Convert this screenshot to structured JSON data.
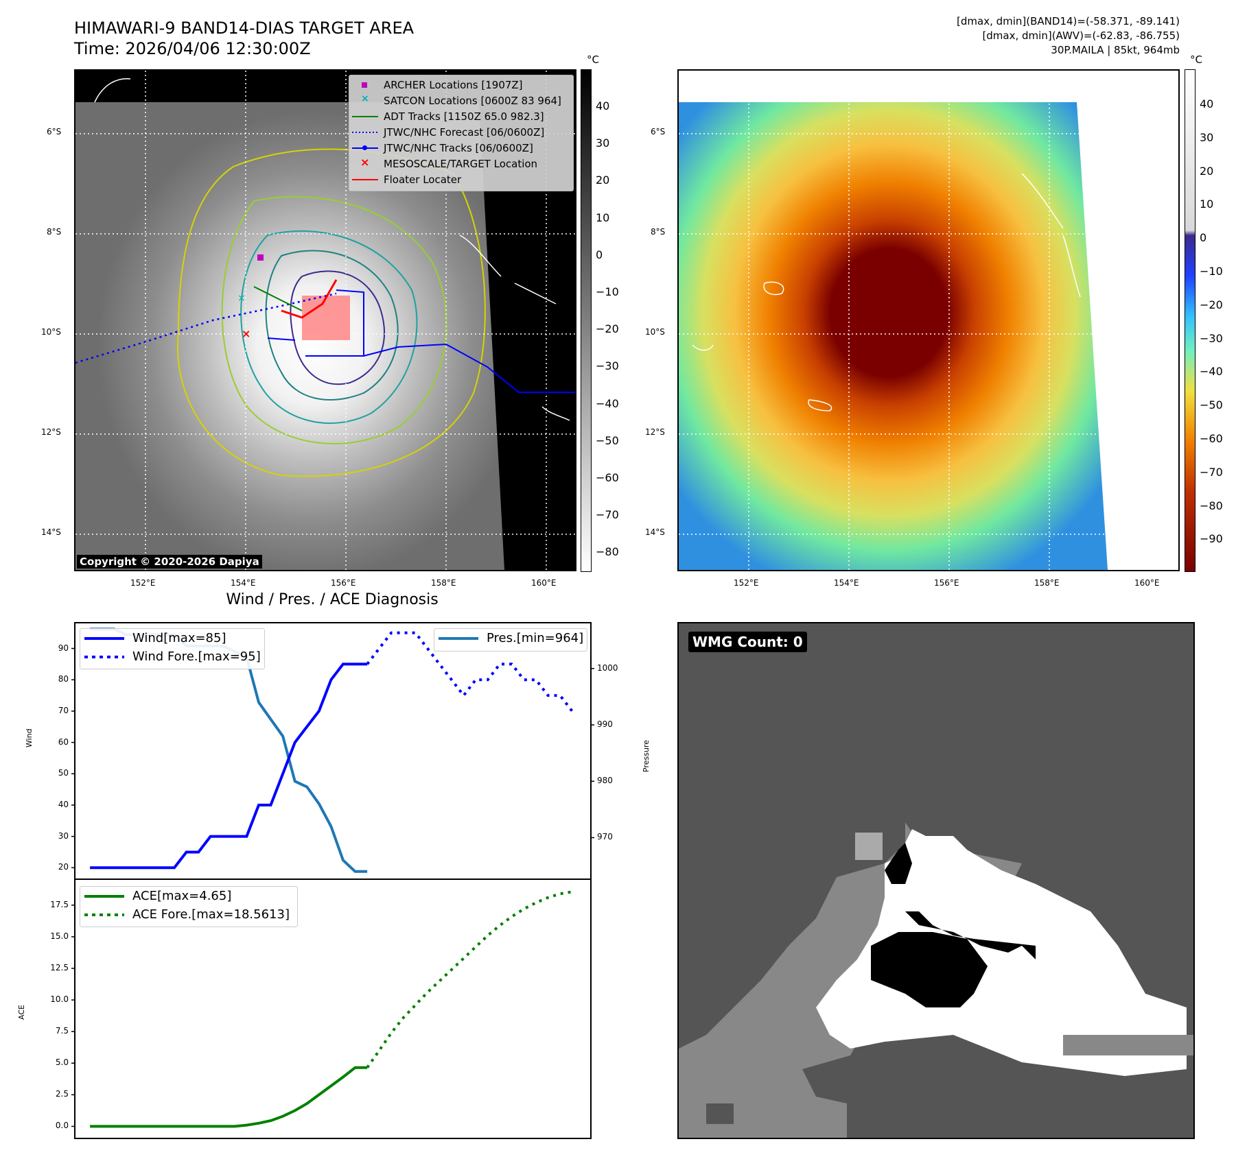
{
  "header": {
    "title_line1": "HIMAWARI-9 BAND14-DIAS TARGET AREA",
    "title_line2": "Time: 2026/04/06 12:30:00Z",
    "info_line1": "[dmax, dmin](BAND14)=(-58.371, -89.141)",
    "info_line2": "[dmax, dmin](AWV)=(-62.83, -86.755)",
    "info_line3": "30P.MAILA | 85kt, 964mb"
  },
  "map": {
    "lat_labels": [
      "6°S",
      "8°S",
      "10°S",
      "12°S",
      "14°S"
    ],
    "lon_labels": [
      "152°E",
      "154°E",
      "156°E",
      "158°E",
      "160°E"
    ],
    "copyright": "Copyright © 2020-2026 Dapiya",
    "legend": [
      {
        "label": "ARCHER Locations [1907Z]",
        "color": "#c000c0",
        "kind": "square"
      },
      {
        "label": "SATCON Locations [0600Z 83 964]",
        "color": "#00b0b0",
        "kind": "cross"
      },
      {
        "label": "ADT Tracks [1150Z 65.0 982.3]",
        "color": "#008000",
        "kind": "line"
      },
      {
        "label": "JTWC/NHC Forecast [06/0600Z]",
        "color": "#0000ff",
        "kind": "dotted"
      },
      {
        "label": "JTWC/NHC Tracks [06/0600Z]",
        "color": "#0000ff",
        "kind": "linedot"
      },
      {
        "label": "MESOSCALE/TARGET Location",
        "color": "#ff0000",
        "kind": "x"
      },
      {
        "label": "Floater Locater",
        "color": "#ff0000",
        "kind": "line"
      }
    ]
  },
  "colorbar_left": {
    "unit": "°C",
    "ticks": [
      "40",
      "30",
      "20",
      "10",
      "0",
      "−10",
      "−20",
      "−30",
      "−40",
      "−50",
      "−60",
      "−70",
      "−80"
    ]
  },
  "colorbar_right": {
    "unit": "°C",
    "ticks": [
      "40",
      "30",
      "20",
      "10",
      "0",
      "−10",
      "−20",
      "−30",
      "−40",
      "−50",
      "−60",
      "−70",
      "−80",
      "−90"
    ]
  },
  "diagnosis": {
    "title": "Wind / Pres. / ACE Diagnosis",
    "wind_ylabel": "Wind",
    "pressure_ylabel": "Pressure",
    "ace_ylabel": "ACE",
    "wind_ticks": [
      "90",
      "80",
      "70",
      "60",
      "50",
      "40",
      "30",
      "20"
    ],
    "pressure_ticks": [
      "1000",
      "990",
      "980",
      "970"
    ],
    "ace_ticks": [
      "17.5",
      "15.0",
      "12.5",
      "10.0",
      "7.5",
      "5.0",
      "2.5",
      "0.0"
    ],
    "legend_wind": "Wind[max=85]",
    "legend_wind_fore": "Wind Fore.[max=95]",
    "legend_pres": "Pres.[min=964]",
    "legend_ace": "ACE[max=4.65]",
    "legend_ace_fore": "ACE Fore.[max=18.5613]"
  },
  "wmg": {
    "label": "WMG Count: 0"
  },
  "chart_data": [
    {
      "type": "line",
      "title": "Wind / Pres. / ACE Diagnosis",
      "ylabel": "Wind",
      "ylim": [
        17,
        98
      ],
      "series": [
        {
          "name": "Wind[max=85]",
          "style": "solid",
          "color": "#0000ff",
          "x": [
            0,
            1,
            2,
            3,
            4,
            5,
            6,
            7,
            8,
            9,
            10,
            11,
            12,
            13,
            14,
            15,
            16,
            17,
            18,
            19,
            20,
            21,
            22,
            23
          ],
          "values": [
            20,
            20,
            20,
            20,
            20,
            20,
            20,
            20,
            25,
            25,
            30,
            30,
            30,
            30,
            40,
            40,
            50,
            60,
            65,
            70,
            80,
            85,
            85,
            85
          ]
        },
        {
          "name": "Wind Fore.[max=95]",
          "style": "dotted",
          "color": "#0000ff",
          "x": [
            23,
            24,
            25,
            26,
            27,
            28,
            29,
            30,
            31,
            32,
            33,
            34,
            35,
            36,
            37,
            38,
            39,
            40
          ],
          "values": [
            85,
            90,
            95,
            95,
            95,
            90,
            85,
            80,
            75,
            80,
            80,
            85,
            85,
            80,
            80,
            75,
            75,
            70
          ]
        }
      ]
    },
    {
      "type": "line",
      "ylabel": "Pressure",
      "ylim": [
        963,
        1008
      ],
      "series": [
        {
          "name": "Pres.[min=964]",
          "style": "solid",
          "color": "#1f77b4",
          "x": [
            0,
            1,
            2,
            3,
            4,
            5,
            6,
            7,
            8,
            9,
            10,
            11,
            12,
            13,
            14,
            15,
            16,
            17,
            18,
            19,
            20,
            21,
            22,
            23
          ],
          "values": [
            1007,
            1007,
            1007,
            1006,
            1006,
            1006,
            1006,
            1006,
            1004,
            1004,
            1004,
            1004,
            1003,
            1002,
            994,
            991,
            988,
            980,
            979,
            976,
            972,
            966,
            964,
            964
          ]
        }
      ]
    },
    {
      "type": "line",
      "ylabel": "ACE",
      "ylim": [
        -0.9,
        19.5
      ],
      "series": [
        {
          "name": "ACE[max=4.65]",
          "style": "solid",
          "color": "#008000",
          "x": [
            0,
            1,
            2,
            3,
            4,
            5,
            6,
            7,
            8,
            9,
            10,
            11,
            12,
            13,
            14,
            15,
            16,
            17,
            18,
            19,
            20,
            21,
            22,
            23
          ],
          "values": [
            0,
            0,
            0,
            0,
            0,
            0,
            0,
            0,
            0,
            0,
            0,
            0,
            0,
            0.1,
            0.25,
            0.45,
            0.8,
            1.25,
            1.8,
            2.5,
            3.2,
            3.9,
            4.65,
            4.65
          ]
        },
        {
          "name": "ACE Fore.[max=18.5613]",
          "style": "dotted",
          "color": "#008000",
          "x": [
            23,
            24,
            25,
            26,
            27,
            28,
            29,
            30,
            31,
            32,
            33,
            34,
            35,
            36,
            37,
            38,
            39,
            40
          ],
          "values": [
            4.65,
            6.0,
            7.4,
            8.6,
            9.6,
            10.6,
            11.5,
            12.4,
            13.3,
            14.2,
            15.1,
            15.9,
            16.6,
            17.2,
            17.7,
            18.1,
            18.4,
            18.56
          ]
        }
      ]
    }
  ]
}
